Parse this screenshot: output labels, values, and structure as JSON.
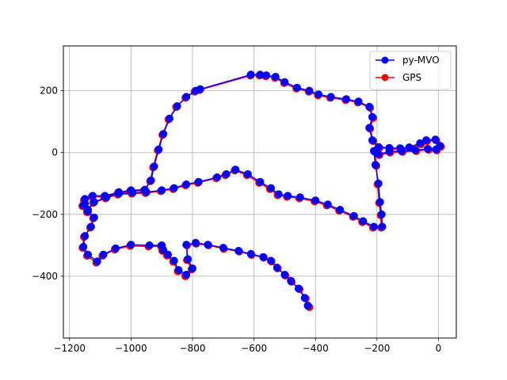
{
  "chart_data": {
    "type": "line",
    "title": "",
    "xlabel": "",
    "ylabel": "",
    "xlim": [
      -1220,
      58
    ],
    "ylim": [
      -600,
      345
    ],
    "xticks": [
      -1200,
      -1000,
      -800,
      -600,
      -400,
      -200,
      0
    ],
    "yticks": [
      -400,
      -200,
      0,
      200
    ],
    "grid": true,
    "legend_position": "top-right",
    "series": [
      {
        "name": "py-MVO",
        "color": "#0000ff",
        "marker": "o",
        "points": [
          [
            -425,
            -495
          ],
          [
            -435,
            -470
          ],
          [
            -455,
            -440
          ],
          [
            -480,
            -415
          ],
          [
            -500,
            -395
          ],
          [
            -525,
            -372
          ],
          [
            -545,
            -350
          ],
          [
            -570,
            -338
          ],
          [
            -610,
            -328
          ],
          [
            -650,
            -318
          ],
          [
            -700,
            -308
          ],
          [
            -750,
            -298
          ],
          [
            -790,
            -292
          ],
          [
            -820,
            -298
          ],
          [
            -815,
            -345
          ],
          [
            -800,
            -375
          ],
          [
            -820,
            -395
          ],
          [
            -845,
            -380
          ],
          [
            -860,
            -350
          ],
          [
            -880,
            -330
          ],
          [
            -895,
            -315
          ],
          [
            -900,
            -300
          ],
          [
            -940,
            -300
          ],
          [
            -1000,
            -298
          ],
          [
            -1050,
            -310
          ],
          [
            -1090,
            -330
          ],
          [
            -1110,
            -352
          ],
          [
            -1140,
            -330
          ],
          [
            -1155,
            -305
          ],
          [
            -1150,
            -270
          ],
          [
            -1130,
            -240
          ],
          [
            -1120,
            -210
          ],
          [
            -1140,
            -190
          ],
          [
            -1155,
            -170
          ],
          [
            -1150,
            -150
          ],
          [
            -1125,
            -140
          ],
          [
            -1085,
            -140
          ],
          [
            -1040,
            -128
          ],
          [
            -1000,
            -122
          ],
          [
            -955,
            -120
          ],
          [
            -935,
            -90
          ],
          [
            -925,
            -45
          ],
          [
            -910,
            10
          ],
          [
            -895,
            60
          ],
          [
            -875,
            110
          ],
          [
            -850,
            150
          ],
          [
            -820,
            180
          ],
          [
            -790,
            200
          ],
          [
            -775,
            205
          ],
          [
            -610,
            252
          ],
          [
            -580,
            252
          ],
          [
            -560,
            250
          ],
          [
            -530,
            245
          ],
          [
            -500,
            228
          ],
          [
            -460,
            210
          ],
          [
            -420,
            200
          ],
          [
            -390,
            188
          ],
          [
            -350,
            180
          ],
          [
            -300,
            173
          ],
          [
            -260,
            165
          ],
          [
            -225,
            148
          ],
          [
            -215,
            115
          ],
          [
            -225,
            80
          ],
          [
            -215,
            40
          ],
          [
            -195,
            18
          ],
          [
            -160,
            15
          ],
          [
            -125,
            14
          ],
          [
            -95,
            17
          ],
          [
            -60,
            30
          ],
          [
            -40,
            40
          ],
          [
            -10,
            42
          ],
          [
            5,
            22
          ],
          [
            -8,
            10
          ],
          [
            -35,
            12
          ],
          [
            -75,
            8
          ],
          [
            -120,
            5
          ],
          [
            -160,
            3
          ],
          [
            -195,
            -5
          ],
          [
            -210,
            5
          ],
          [
            -205,
            -40
          ],
          [
            -195,
            -100
          ],
          [
            -190,
            -160
          ],
          [
            -185,
            -200
          ],
          [
            -183,
            -240
          ],
          [
            -210,
            -240
          ],
          [
            -245,
            -222
          ],
          [
            -275,
            -205
          ],
          [
            -320,
            -185
          ],
          [
            -360,
            -168
          ],
          [
            -400,
            -155
          ],
          [
            -450,
            -145
          ],
          [
            -490,
            -140
          ],
          [
            -520,
            -135
          ],
          [
            -545,
            -115
          ],
          [
            -580,
            -95
          ],
          [
            -620,
            -70
          ],
          [
            -660,
            -55
          ],
          [
            -690,
            -70
          ],
          [
            -720,
            -80
          ],
          [
            -780,
            -95
          ],
          [
            -820,
            -103
          ],
          [
            -860,
            -115
          ],
          [
            -900,
            -122
          ],
          [
            -950,
            -128
          ],
          [
            -995,
            -130
          ],
          [
            -1040,
            -133
          ],
          [
            -1080,
            -145
          ],
          [
            -1120,
            -160
          ],
          [
            -1140,
            -185
          ],
          [
            -1150,
            -165
          ]
        ]
      },
      {
        "name": "GPS",
        "color": "#ff0000",
        "marker": "o",
        "points": [
          [
            -420,
            -500
          ],
          [
            -432,
            -472
          ],
          [
            -452,
            -442
          ],
          [
            -478,
            -418
          ],
          [
            -498,
            -398
          ],
          [
            -523,
            -375
          ],
          [
            -543,
            -352
          ],
          [
            -568,
            -340
          ],
          [
            -608,
            -331
          ],
          [
            -648,
            -320
          ],
          [
            -698,
            -311
          ],
          [
            -748,
            -300
          ],
          [
            -788,
            -295
          ],
          [
            -818,
            -300
          ],
          [
            -818,
            -348
          ],
          [
            -803,
            -378
          ],
          [
            -823,
            -400
          ],
          [
            -848,
            -384
          ],
          [
            -863,
            -353
          ],
          [
            -883,
            -333
          ],
          [
            -898,
            -318
          ],
          [
            -903,
            -303
          ],
          [
            -943,
            -304
          ],
          [
            -1003,
            -302
          ],
          [
            -1053,
            -314
          ],
          [
            -1093,
            -334
          ],
          [
            -1113,
            -356
          ],
          [
            -1143,
            -334
          ],
          [
            -1158,
            -308
          ],
          [
            -1153,
            -273
          ],
          [
            -1133,
            -243
          ],
          [
            -1123,
            -213
          ],
          [
            -1143,
            -193
          ],
          [
            -1158,
            -173
          ],
          [
            -1153,
            -153
          ],
          [
            -1128,
            -143
          ],
          [
            -1088,
            -143
          ],
          [
            -1043,
            -131
          ],
          [
            -1003,
            -125
          ],
          [
            -958,
            -123
          ],
          [
            -938,
            -93
          ],
          [
            -928,
            -48
          ],
          [
            -913,
            7
          ],
          [
            -898,
            57
          ],
          [
            -878,
            107
          ],
          [
            -853,
            147
          ],
          [
            -823,
            177
          ],
          [
            -793,
            197
          ],
          [
            -778,
            202
          ],
          [
            -612,
            249
          ],
          [
            -582,
            249
          ],
          [
            -562,
            247
          ],
          [
            -532,
            242
          ],
          [
            -502,
            225
          ],
          [
            -462,
            207
          ],
          [
            -422,
            197
          ],
          [
            -392,
            185
          ],
          [
            -352,
            177
          ],
          [
            -302,
            170
          ],
          [
            -262,
            162
          ],
          [
            -222,
            145
          ],
          [
            -212,
            112
          ],
          [
            -222,
            77
          ],
          [
            -212,
            37
          ],
          [
            -192,
            15
          ],
          [
            -157,
            12
          ],
          [
            -122,
            11
          ],
          [
            -92,
            14
          ],
          [
            -57,
            27
          ],
          [
            -37,
            37
          ],
          [
            -7,
            39
          ],
          [
            8,
            19
          ],
          [
            -5,
            7
          ],
          [
            -32,
            9
          ],
          [
            -72,
            5
          ],
          [
            -117,
            2
          ],
          [
            -157,
            0
          ],
          [
            -192,
            -8
          ],
          [
            -207,
            2
          ],
          [
            -202,
            -43
          ],
          [
            -198,
            -103
          ],
          [
            -193,
            -163
          ],
          [
            -188,
            -203
          ],
          [
            -186,
            -243
          ],
          [
            -213,
            -243
          ],
          [
            -248,
            -225
          ],
          [
            -278,
            -208
          ],
          [
            -323,
            -188
          ],
          [
            -363,
            -171
          ],
          [
            -403,
            -158
          ],
          [
            -453,
            -148
          ],
          [
            -493,
            -143
          ],
          [
            -523,
            -138
          ],
          [
            -548,
            -118
          ],
          [
            -583,
            -98
          ],
          [
            -623,
            -73
          ],
          [
            -663,
            -58
          ],
          [
            -693,
            -73
          ],
          [
            -723,
            -83
          ],
          [
            -783,
            -98
          ],
          [
            -823,
            -106
          ],
          [
            -863,
            -118
          ],
          [
            -903,
            -125
          ],
          [
            -953,
            -131
          ],
          [
            -998,
            -133
          ],
          [
            -1043,
            -136
          ],
          [
            -1083,
            -148
          ],
          [
            -1123,
            -163
          ],
          [
            -1143,
            -188
          ],
          [
            -1153,
            -168
          ]
        ]
      }
    ]
  }
}
